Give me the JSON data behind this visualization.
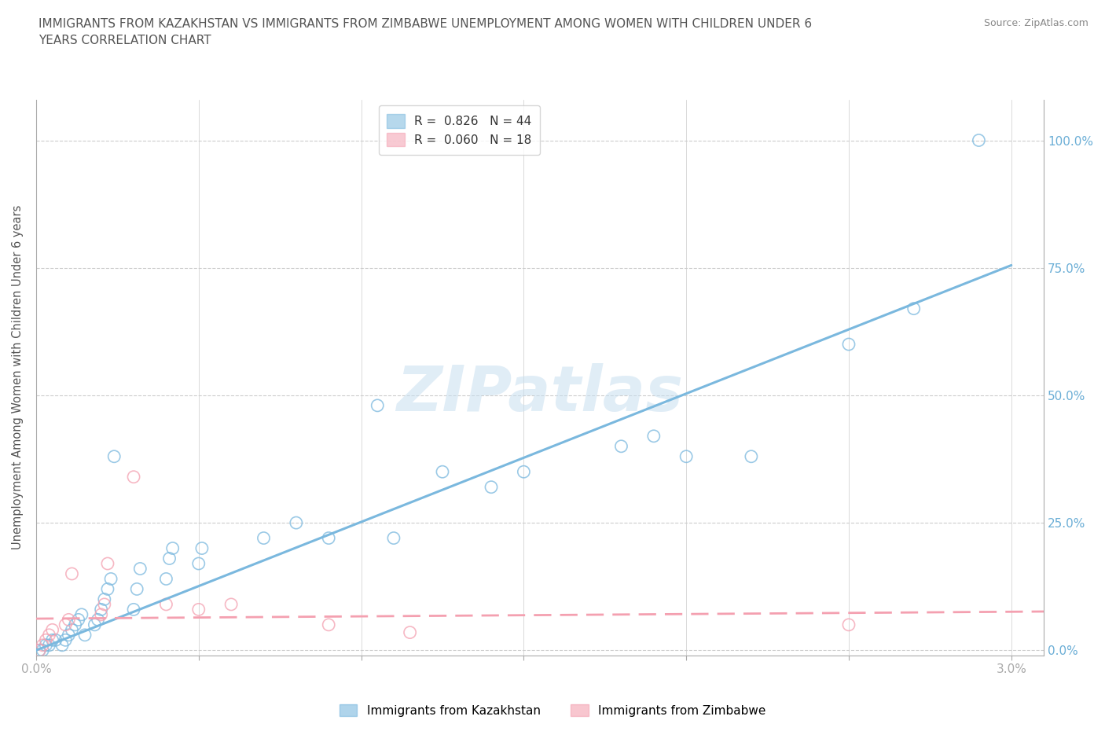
{
  "title": "IMMIGRANTS FROM KAZAKHSTAN VS IMMIGRANTS FROM ZIMBABWE UNEMPLOYMENT AMONG WOMEN WITH CHILDREN UNDER 6\nYEARS CORRELATION CHART",
  "source": "Source: ZipAtlas.com",
  "ylabel": "Unemployment Among Women with Children Under 6 years",
  "xlim": [
    0.0,
    0.031
  ],
  "ylim": [
    -0.01,
    1.08
  ],
  "x_ticks": [
    0.0,
    0.005,
    0.01,
    0.015,
    0.02,
    0.025,
    0.03
  ],
  "x_tick_labels": [
    "0.0%",
    "",
    "",
    "",
    "",
    "",
    "3.0%"
  ],
  "y_ticks": [
    0.0,
    0.25,
    0.5,
    0.75,
    1.0
  ],
  "y_tick_labels": [
    "0.0%",
    "25.0%",
    "50.0%",
    "75.0%",
    "100.0%"
  ],
  "legend_entries": [
    {
      "label": "R =  0.826   N = 44",
      "color": "#7ab8de"
    },
    {
      "label": "R =  0.060   N = 18",
      "color": "#f4a0b0"
    }
  ],
  "kaz_x": [
    0.0001,
    0.0002,
    0.0003,
    0.0004,
    0.0005,
    0.0006,
    0.0008,
    0.0009,
    0.001,
    0.0011,
    0.0012,
    0.0013,
    0.0014,
    0.0015,
    0.0018,
    0.0019,
    0.002,
    0.0021,
    0.0022,
    0.0023,
    0.0024,
    0.003,
    0.0031,
    0.0032,
    0.004,
    0.0041,
    0.0042,
    0.005,
    0.0051,
    0.007,
    0.008,
    0.009,
    0.0105,
    0.011,
    0.0125,
    0.014,
    0.015,
    0.018,
    0.019,
    0.02,
    0.022,
    0.025,
    0.027,
    0.029
  ],
  "kaz_y": [
    0.0,
    0.0,
    0.01,
    0.01,
    0.02,
    0.02,
    0.01,
    0.02,
    0.03,
    0.04,
    0.05,
    0.06,
    0.07,
    0.03,
    0.05,
    0.06,
    0.08,
    0.1,
    0.12,
    0.14,
    0.38,
    0.08,
    0.12,
    0.16,
    0.14,
    0.18,
    0.2,
    0.17,
    0.2,
    0.22,
    0.25,
    0.22,
    0.48,
    0.22,
    0.35,
    0.32,
    0.35,
    0.4,
    0.42,
    0.38,
    0.38,
    0.6,
    0.67,
    1.0
  ],
  "kaz_trend_x": [
    0.0,
    0.03
  ],
  "kaz_trend_y": [
    0.0,
    0.755
  ],
  "zim_x": [
    0.0001,
    0.0002,
    0.0003,
    0.0004,
    0.0005,
    0.0009,
    0.001,
    0.0011,
    0.002,
    0.0021,
    0.0022,
    0.003,
    0.004,
    0.005,
    0.006,
    0.009,
    0.0115,
    0.025
  ],
  "zim_y": [
    0.0,
    0.01,
    0.02,
    0.03,
    0.04,
    0.05,
    0.06,
    0.15,
    0.07,
    0.09,
    0.17,
    0.34,
    0.09,
    0.08,
    0.09,
    0.05,
    0.035,
    0.05
  ],
  "zim_trend_x": [
    0.0,
    0.031
  ],
  "zim_trend_y": [
    0.062,
    0.076
  ],
  "watermark_text": "ZIPatlas",
  "background_color": "#ffffff",
  "grid_color": "#cccccc",
  "title_color": "#555555",
  "axis_color": "#aaaaaa",
  "tick_color_blue": "#6baed6",
  "marker_size": 120,
  "kaz_color": "#7ab8de",
  "zim_color": "#f4a0b0"
}
